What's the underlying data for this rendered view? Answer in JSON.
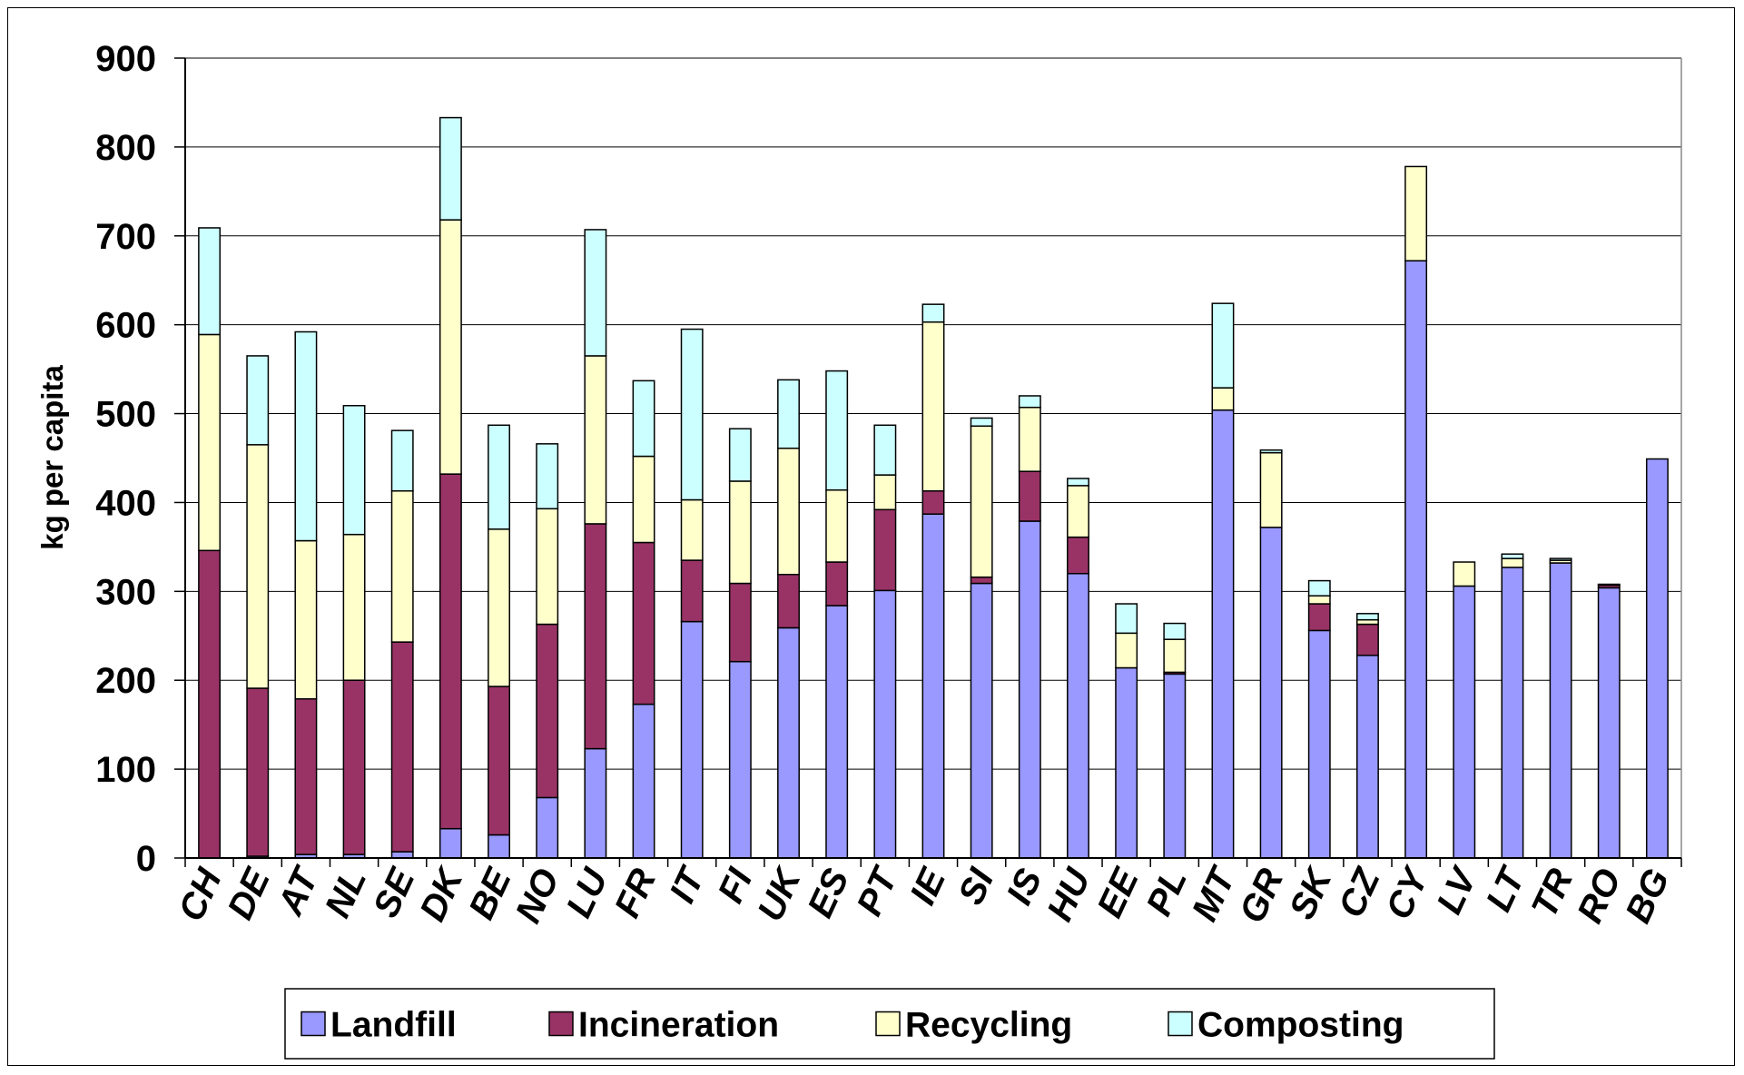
{
  "chart_data": {
    "type": "bar",
    "stacked": true,
    "title": "",
    "xlabel": "",
    "ylabel": "kg per capita",
    "ylim": [
      0,
      900
    ],
    "yticks": [
      0,
      100,
      200,
      300,
      400,
      500,
      600,
      700,
      800,
      900
    ],
    "grid": true,
    "legend_position": "bottom",
    "categories": [
      "CH",
      "DE",
      "AT",
      "NL",
      "SE",
      "DK",
      "BE",
      "NO",
      "LU",
      "FR",
      "IT",
      "FI",
      "UK",
      "ES",
      "PT",
      "IE",
      "SI",
      "IS",
      "HU",
      "EE",
      "PL",
      "MT",
      "GR",
      "SK",
      "CZ",
      "CY",
      "LV",
      "LT",
      "TR",
      "RO",
      "BG"
    ],
    "series": [
      {
        "name": "Landfill",
        "color": "#9999ff",
        "values": [
          0,
          2,
          4,
          4,
          7,
          33,
          26,
          68,
          123,
          173,
          266,
          221,
          259,
          284,
          301,
          387,
          309,
          379,
          320,
          214,
          207,
          504,
          372,
          256,
          228,
          672,
          306,
          327,
          332,
          304,
          449
        ]
      },
      {
        "name": "Incineration",
        "color": "#993366",
        "values": [
          346,
          189,
          175,
          196,
          236,
          399,
          167,
          195,
          253,
          182,
          69,
          88,
          60,
          49,
          91,
          26,
          7,
          56,
          41,
          0,
          2,
          0,
          0,
          30,
          35,
          0,
          0,
          0,
          0,
          3,
          0
        ]
      },
      {
        "name": "Recycling",
        "color": "#ffffcc",
        "values": [
          243,
          274,
          178,
          164,
          170,
          286,
          177,
          130,
          189,
          97,
          68,
          115,
          142,
          81,
          39,
          190,
          170,
          72,
          58,
          39,
          37,
          25,
          84,
          9,
          5,
          106,
          27,
          10,
          3,
          0,
          0
        ]
      },
      {
        "name": "Composting",
        "color": "#ccffff",
        "values": [
          120,
          100,
          235,
          145,
          68,
          115,
          117,
          73,
          142,
          85,
          192,
          59,
          77,
          134,
          56,
          20,
          9,
          13,
          8,
          33,
          18,
          95,
          3,
          17,
          7,
          0,
          0,
          5,
          2,
          1,
          0
        ]
      }
    ]
  }
}
